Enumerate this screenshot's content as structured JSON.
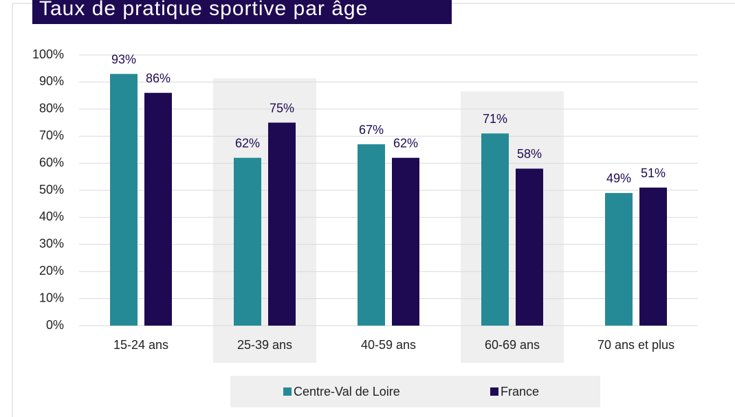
{
  "chart_data": {
    "type": "bar",
    "title": "Taux de pratique sportive par âge",
    "categories": [
      "15-24 ans",
      "25-39 ans",
      "40-59 ans",
      "60-69 ans",
      "70 ans et plus"
    ],
    "series": [
      {
        "name": "Centre-Val de Loire",
        "color": "#258a96",
        "values": [
          93,
          62,
          67,
          71,
          49
        ],
        "value_labels": [
          "93%",
          "62%",
          "67%",
          "71%",
          "49%"
        ]
      },
      {
        "name": "France",
        "color": "#1e0a52",
        "values": [
          86,
          75,
          62,
          58,
          51
        ],
        "value_labels": [
          "86%",
          "75%",
          "62%",
          "58%",
          "51%"
        ]
      }
    ],
    "ylim": [
      0,
      100
    ],
    "yticks": [
      {
        "value": 0,
        "label": "0%"
      },
      {
        "value": 10,
        "label": "10%"
      },
      {
        "value": 20,
        "label": "20%"
      },
      {
        "value": 30,
        "label": "30%"
      },
      {
        "value": 40,
        "label": "40%"
      },
      {
        "value": 50,
        "label": "50%"
      },
      {
        "value": 60,
        "label": "60%"
      },
      {
        "value": 70,
        "label": "70%"
      },
      {
        "value": 80,
        "label": "80%"
      },
      {
        "value": 90,
        "label": "90%"
      },
      {
        "value": 100,
        "label": "100%"
      }
    ],
    "grid": true,
    "legend": "bottom"
  }
}
